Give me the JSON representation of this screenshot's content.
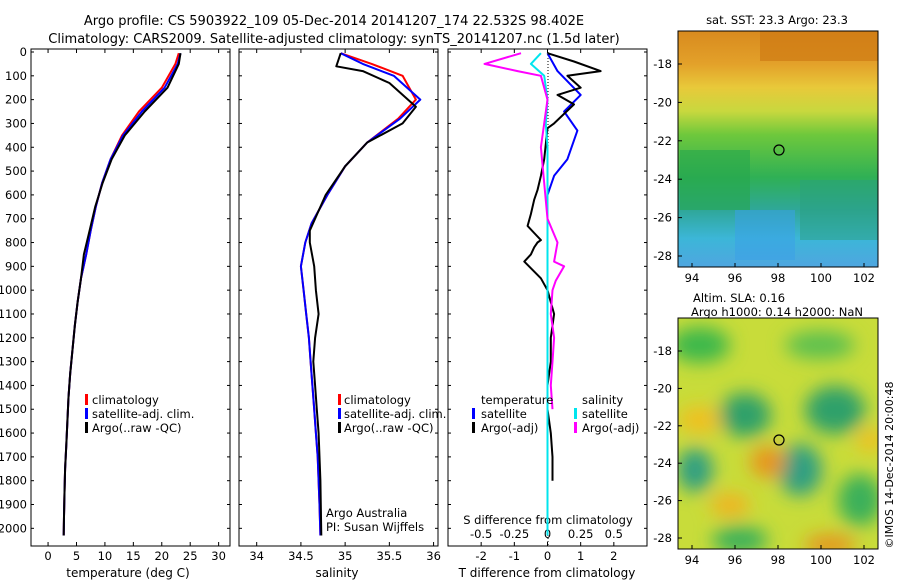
{
  "header": {
    "title_line1": "Argo profile: CS 5903922_109 05-Dec-2014 20141207_174 22.532S 98.402E",
    "title_line2": "Climatology: CARS2009. Satellite-adjusted climatology: synTS_20141207.nc (1.5d later)"
  },
  "colors": {
    "climatology": "#ff0000",
    "satellite": "#0000ff",
    "argo": "#000000",
    "sat_salinity": "#00e5ee",
    "argo_salinity": "#ff00ff"
  },
  "depth_ticks": [
    "0",
    "100",
    "200",
    "300",
    "400",
    "500",
    "600",
    "700",
    "800",
    "900",
    "1000",
    "1100",
    "1200",
    "1300",
    "1400",
    "1500",
    "1600",
    "1700",
    "1800",
    "1900",
    "2000"
  ],
  "temperature_panel": {
    "xlabel": "temperature (deg C)",
    "xticks": [
      "0",
      "5",
      "10",
      "15",
      "20",
      "25",
      "30"
    ],
    "legend": [
      "climatology",
      "satellite-adj. clim.",
      "Argo(..raw -QC)"
    ]
  },
  "salinity_panel": {
    "xlabel": "salinity",
    "xticks": [
      "34",
      "34.5",
      "35",
      "35.5",
      "36"
    ],
    "legend": [
      "climatology",
      "satellite-adj. clim.",
      "Argo(..raw -QC)"
    ],
    "credit_line1": "Argo Australia",
    "credit_line2": "PI: Susan Wijffels"
  },
  "difference_panel": {
    "legend_temperature_title": "temperature",
    "legend_salinity_title": "salinity",
    "legend_satellite": "satellite",
    "legend_argo": "Argo(-adj)",
    "s_label": "S difference from climatology",
    "s_ticks": [
      "-0.5",
      "-0.25",
      "0",
      "0.25",
      "0.5"
    ],
    "t_ticks": [
      "-2",
      "-1",
      "0",
      "1",
      "2"
    ],
    "xlabel": "T difference from climatology"
  },
  "sst_map": {
    "title": "sat. SST: 23.3 Argo: 23.3",
    "yticks": [
      "-18",
      "-20",
      "-22",
      "-24",
      "-26",
      "-28"
    ],
    "xticks": [
      "94",
      "96",
      "98",
      "100",
      "102"
    ]
  },
  "sla_map": {
    "title_line1": "Altim. SLA: 0.16",
    "title_line2": "Argo h1000: 0.14 h2000: NaN",
    "yticks": [
      "-18",
      "-20",
      "-22",
      "-24",
      "-26",
      "-28"
    ],
    "xticks": [
      "94",
      "96",
      "98",
      "100",
      "102"
    ]
  },
  "footer": {
    "credit": "©IMOS 14-Dec-2014 20:00:48"
  },
  "chart_data": [
    {
      "type": "line",
      "xlabel": "temperature (deg C)",
      "ylabel": "",
      "xlim": [
        -3,
        32
      ],
      "ylim": [
        2070,
        0
      ],
      "series": [
        {
          "name": "climatology",
          "color": "#ff0000",
          "x": [
            23.0,
            22.4,
            20.0,
            16.0,
            13.0,
            11.0,
            9.5,
            8.4,
            7.5,
            6.7,
            5.8,
            5.2,
            4.7,
            4.3,
            3.9,
            3.6,
            3.4,
            3.2,
            3.0,
            2.9,
            2.8,
            2.75
          ],
          "y": [
            5,
            50,
            150,
            250,
            350,
            450,
            550,
            650,
            750,
            850,
            950,
            1050,
            1150,
            1250,
            1350,
            1450,
            1550,
            1650,
            1750,
            1850,
            1950,
            2030
          ]
        },
        {
          "name": "satellite-adj. clim.",
          "color": "#0000ff",
          "x": [
            23.3,
            22.8,
            20.5,
            16.5,
            13.2,
            11.0,
            9.5,
            8.4,
            7.5,
            6.7,
            5.8,
            5.2,
            4.7,
            4.3,
            3.9,
            3.6,
            3.4,
            3.2,
            3.0,
            2.9,
            2.8,
            2.75
          ],
          "y": [
            5,
            50,
            150,
            250,
            350,
            450,
            550,
            650,
            750,
            850,
            950,
            1050,
            1150,
            1250,
            1350,
            1450,
            1550,
            1650,
            1750,
            1850,
            1950,
            2030
          ]
        },
        {
          "name": "Argo(..raw -QC)",
          "color": "#000000",
          "x": [
            23.3,
            23.0,
            21.0,
            17.0,
            13.5,
            11.2,
            9.6,
            8.3,
            7.3,
            6.3,
            5.8,
            5.2,
            4.7,
            4.3,
            3.9,
            3.6,
            3.4,
            3.2,
            3.0,
            2.9,
            2.8,
            2.75
          ],
          "y": [
            5,
            50,
            150,
            250,
            350,
            450,
            550,
            650,
            750,
            850,
            950,
            1050,
            1150,
            1250,
            1350,
            1450,
            1550,
            1650,
            1750,
            1850,
            1950,
            2030
          ]
        }
      ]
    },
    {
      "type": "line",
      "xlabel": "salinity",
      "ylabel": "",
      "xlim": [
        33.8,
        36.05
      ],
      "ylim": [
        2070,
        0
      ],
      "series": [
        {
          "name": "climatology",
          "color": "#ff0000",
          "x": [
            34.95,
            35.3,
            35.65,
            35.8,
            35.6,
            35.25,
            35.0,
            34.8,
            34.62,
            34.55,
            34.5,
            34.53,
            34.56,
            34.59,
            34.61,
            34.63,
            34.65,
            34.67,
            34.69,
            34.7,
            34.71,
            34.72
          ],
          "y": [
            5,
            50,
            100,
            200,
            280,
            380,
            480,
            600,
            720,
            800,
            900,
            1000,
            1100,
            1200,
            1300,
            1400,
            1500,
            1600,
            1700,
            1800,
            1900,
            2030
          ]
        },
        {
          "name": "satellite-adj. clim.",
          "color": "#0000ff",
          "x": [
            34.95,
            35.2,
            35.55,
            35.85,
            35.62,
            35.25,
            35.0,
            34.8,
            34.62,
            34.55,
            34.5,
            34.53,
            34.56,
            34.59,
            34.61,
            34.63,
            34.65,
            34.67,
            34.69,
            34.7,
            34.71,
            34.72
          ],
          "y": [
            5,
            50,
            100,
            200,
            280,
            380,
            480,
            600,
            720,
            800,
            900,
            1000,
            1100,
            1200,
            1300,
            1400,
            1500,
            1600,
            1700,
            1800,
            1900,
            2030
          ]
        },
        {
          "name": "Argo(..raw -QC)",
          "color": "#000000",
          "x": [
            34.95,
            34.9,
            35.2,
            35.5,
            35.8,
            35.65,
            35.25,
            35.0,
            34.78,
            34.6,
            34.6,
            34.65,
            34.67,
            34.7,
            34.66,
            34.64,
            34.66,
            34.68,
            34.7,
            34.71,
            34.72,
            34.73
          ],
          "y": [
            5,
            60,
            80,
            130,
            230,
            300,
            380,
            480,
            600,
            750,
            800,
            900,
            1000,
            1100,
            1200,
            1300,
            1400,
            1500,
            1600,
            1700,
            1800,
            2030
          ]
        }
      ]
    },
    {
      "type": "line",
      "xlabel": "T difference from climatology",
      "ylabel": "",
      "xlim": [
        -3,
        3
      ],
      "ylim": [
        2070,
        0
      ],
      "series": [
        {
          "name": "temperature satellite",
          "color": "#0000ff",
          "x": [
            0.0,
            0.3,
            1.0,
            0.5,
            0.9,
            0.6,
            0.2,
            0.0,
            0.0,
            0.0,
            0.0,
            0.0,
            0.0,
            0.0,
            0.0,
            0.0,
            0.0,
            0.0,
            0.0
          ],
          "y": [
            5,
            80,
            180,
            250,
            330,
            450,
            520,
            600,
            700,
            800,
            900,
            1000,
            1100,
            1200,
            1400,
            1600,
            1800,
            1950,
            2030
          ]
        },
        {
          "name": "temperature Argo(-adj)",
          "color": "#000000",
          "x": [
            0.0,
            0.8,
            1.6,
            0.6,
            1.0,
            0.3,
            0.8,
            0.2,
            0.0,
            -0.1,
            -0.2,
            -0.3,
            -0.4,
            -0.5,
            -0.6,
            -0.4,
            -0.2,
            -0.3,
            -0.4,
            -0.5,
            -0.7,
            -0.2,
            0.0,
            0.2,
            0.1,
            0.1,
            0.0,
            0.0,
            0.1,
            0.15,
            0.15
          ],
          "y": [
            5,
            40,
            80,
            100,
            150,
            180,
            220,
            300,
            320,
            450,
            520,
            580,
            620,
            680,
            730,
            760,
            790,
            800,
            820,
            850,
            880,
            950,
            1000,
            1100,
            1200,
            1300,
            1400,
            1500,
            1600,
            1700,
            1800
          ]
        },
        {
          "name": "salinity satellite",
          "color": "#00e5ee",
          "x": [
            -0.2,
            -0.5,
            -0.1,
            0.0,
            -0.05,
            0.0,
            0.0,
            0.0,
            0.0,
            0.0,
            0.0
          ],
          "y": [
            5,
            50,
            100,
            200,
            300,
            400,
            600,
            800,
            1200,
            1600,
            2030
          ]
        },
        {
          "name": "salinity Argo(-adj)",
          "color": "#ff00ff",
          "x": [
            -0.8,
            -1.9,
            -0.9,
            -0.2,
            0.0,
            -0.1,
            -0.2,
            0.0,
            0.3,
            0.2,
            0.5,
            0.25,
            0.15,
            0.1,
            0.2,
            0.15,
            0.1,
            0.15
          ],
          "y": [
            5,
            50,
            80,
            100,
            200,
            300,
            400,
            700,
            800,
            880,
            900,
            960,
            1000,
            1100,
            1200,
            1300,
            1400,
            1500
          ]
        }
      ]
    }
  ]
}
